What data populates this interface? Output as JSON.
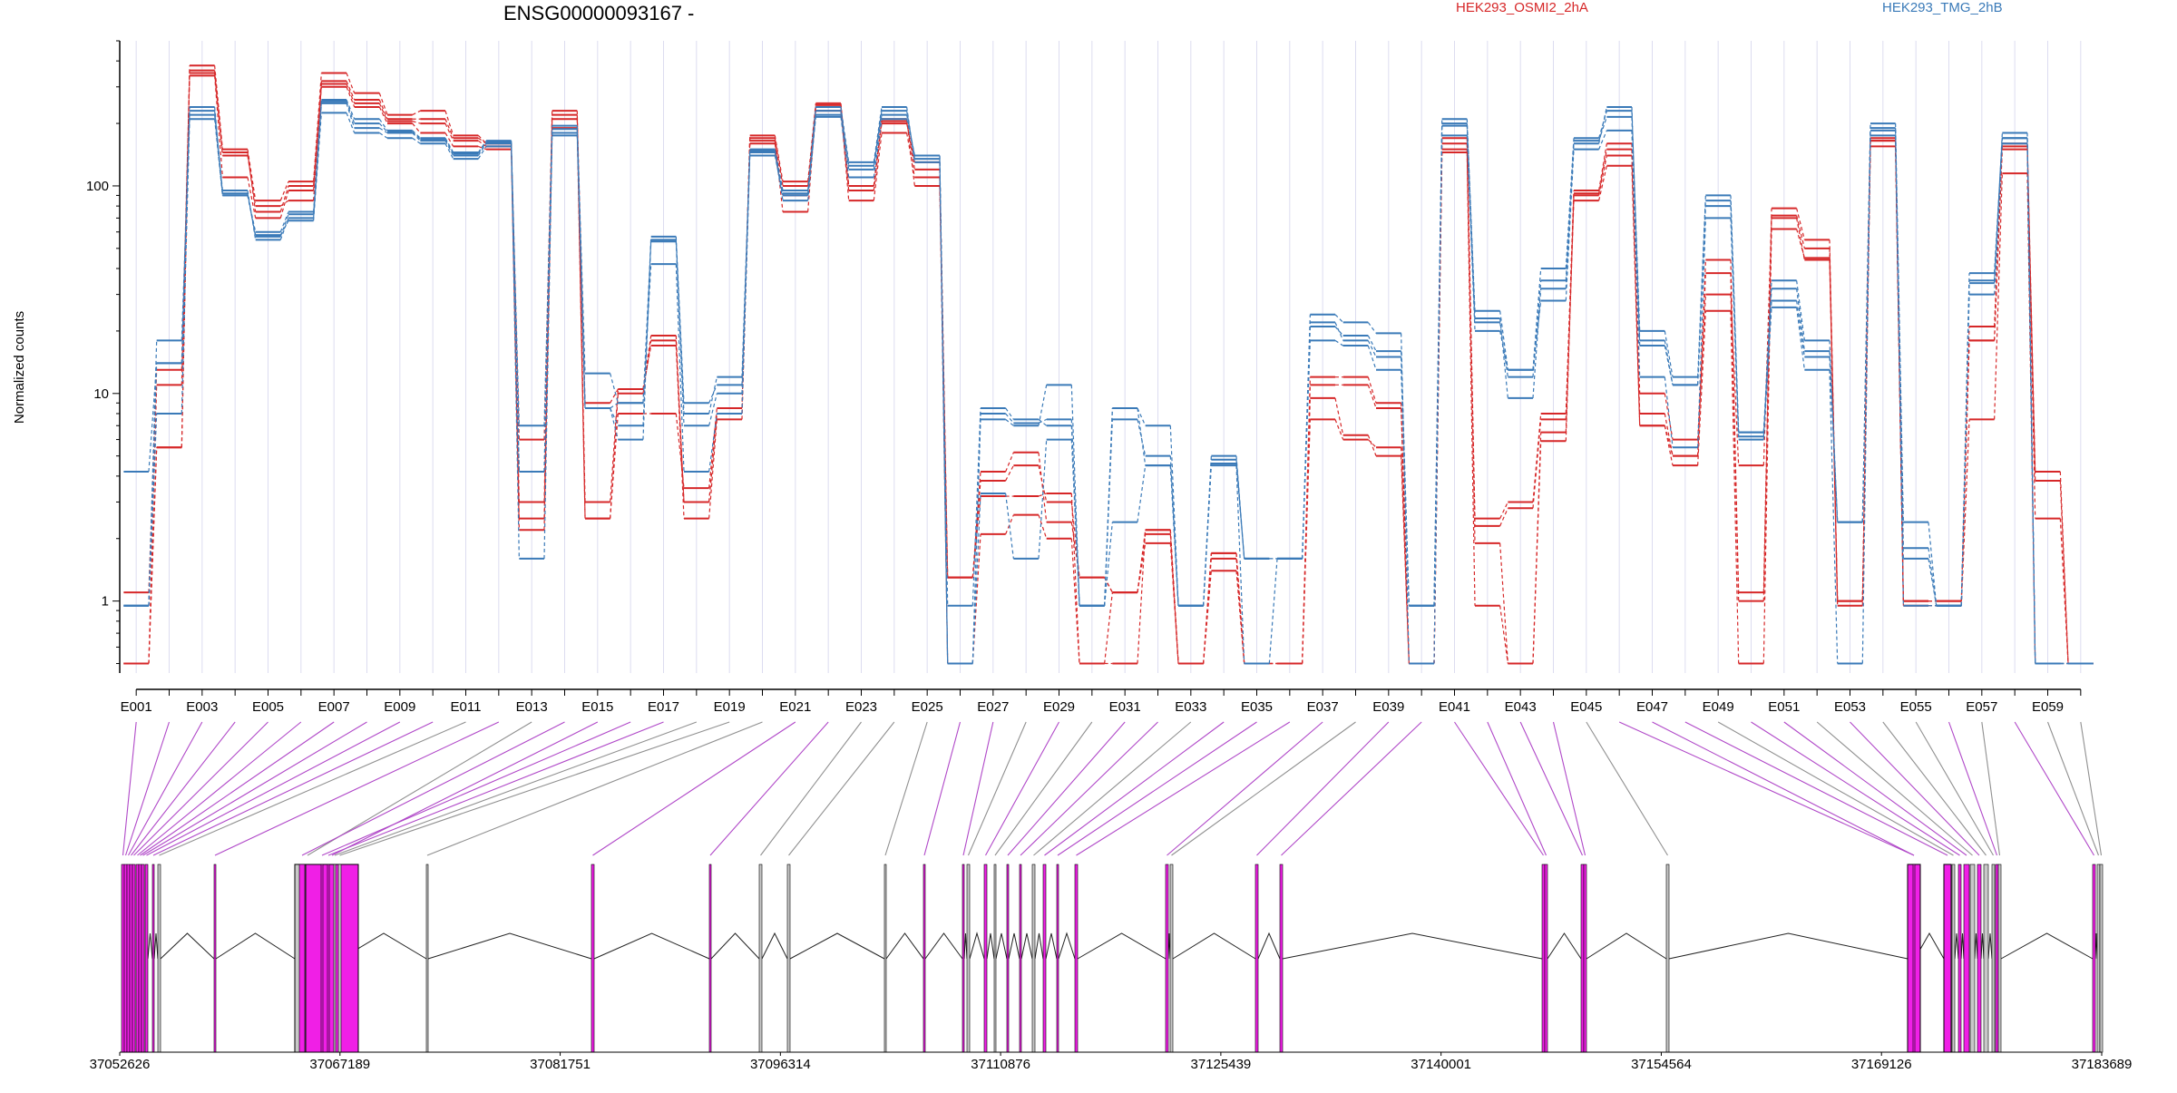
{
  "chart_data": {
    "type": "line",
    "title": "ENSG00000093167 -",
    "xlabel": "",
    "ylabel": "Normalized counts",
    "y_scale": "log",
    "ylim": [
      0.45,
      500
    ],
    "y_ticks": [
      1,
      10,
      100
    ],
    "y_tick_labels": [
      "1",
      "10",
      "100"
    ],
    "legend_position": "top-right",
    "legend": [
      {
        "label": "HEK293_OSMI2_2hA",
        "color": "#d62728"
      },
      {
        "label": "HEK293_TMG_2hB",
        "color": "#3a7ab8"
      }
    ],
    "colors": {
      "condition_a": "#d62728",
      "condition_b": "#3a7ab8",
      "exon_highlight": "#f01fe6",
      "exon_plain": "#c8c8c8",
      "link_highlight": "#b048c8",
      "link_plain": "#909090"
    },
    "categories": [
      "E001",
      "E002",
      "E003",
      "E004",
      "E005",
      "E006",
      "E007",
      "E008",
      "E009",
      "E010",
      "E011",
      "E012",
      "E013",
      "E014",
      "E015",
      "E016",
      "E017",
      "E018",
      "E019",
      "E020",
      "E021",
      "E022",
      "E023",
      "E024",
      "E025",
      "E026",
      "E027",
      "E028",
      "E029",
      "E030",
      "E031",
      "E032",
      "E033",
      "E034",
      "E035",
      "E036",
      "E037",
      "E038",
      "E039",
      "E040",
      "E041",
      "E042",
      "E043",
      "E044",
      "E045",
      "E046",
      "E047",
      "E048",
      "E049",
      "E050",
      "E051",
      "E052",
      "E053",
      "E054",
      "E055",
      "E056",
      "E057",
      "E058",
      "E059",
      "E060"
    ],
    "x_tick_labels": [
      "E001",
      "E003",
      "E005",
      "E007",
      "E009",
      "E011",
      "E013",
      "E015",
      "E017",
      "E019",
      "E021",
      "E023",
      "E025",
      "E027",
      "E029",
      "E031",
      "E033",
      "E035",
      "E037",
      "E039",
      "E041",
      "E043",
      "E045",
      "E047",
      "E049",
      "E051",
      "E053",
      "E055",
      "E057",
      "E059"
    ],
    "series_a_label": "HEK293_OSMI2_2hA",
    "series_b_label": "HEK293_TMG_2hB",
    "series": [
      {
        "group": "a",
        "values": [
          0.5,
          5.5,
          380,
          150,
          85,
          105,
          350,
          280,
          220,
          230,
          175,
          160,
          3,
          230,
          3,
          10.5,
          19,
          3,
          8,
          175,
          105,
          250,
          100,
          210,
          100,
          1.3,
          4.2,
          5.2,
          2.4,
          1.3,
          1.1,
          2.1,
          0.5,
          1.7,
          0.5,
          0.5,
          12,
          12,
          9,
          0.5,
          170,
          2.5,
          3,
          8,
          95,
          160,
          7,
          5,
          44,
          1.1,
          78,
          55,
          1,
          170,
          1,
          1,
          21,
          160,
          4.2,
          0.5
        ]
      },
      {
        "group": "a",
        "values": [
          0.5,
          11,
          350,
          140,
          80,
          85,
          310,
          250,
          205,
          200,
          165,
          155,
          2.5,
          210,
          2.5,
          10,
          18,
          2.5,
          7.5,
          160,
          90,
          230,
          95,
          200,
          130,
          1.3,
          3.2,
          3.2,
          3.3,
          0.5,
          1.1,
          1.9,
          0.5,
          1.7,
          0.5,
          0.5,
          9.5,
          6.3,
          5,
          0.5,
          150,
          1.9,
          0.5,
          5.9,
          90,
          140,
          10,
          6,
          30,
          4.5,
          70,
          44,
          1,
          165,
          1,
          1,
          18,
          150,
          2.5,
          0.5
        ]
      },
      {
        "group": "a",
        "values": [
          1.1,
          13,
          340,
          110,
          70,
          95,
          300,
          240,
          200,
          180,
          155,
          150,
          2.2,
          190,
          2.5,
          8,
          8,
          3.5,
          8.5,
          165,
          75,
          240,
          85,
          180,
          110,
          0.5,
          2.1,
          2.6,
          2,
          0.5,
          0.5,
          2.2,
          0.5,
          1.4,
          0.5,
          0.5,
          7.5,
          6,
          5.5,
          0.5,
          145,
          0.95,
          0.5,
          6.5,
          85,
          125,
          7,
          4.5,
          25,
          0.5,
          62,
          45,
          0.95,
          155,
          0.95,
          0.95,
          7.5,
          115,
          0.5,
          0.5
        ]
      },
      {
        "group": "a",
        "values": [
          0.5,
          5.5,
          360,
          145,
          75,
          100,
          320,
          260,
          210,
          210,
          170,
          160,
          6,
          220,
          9,
          10.5,
          17,
          3,
          8,
          170,
          100,
          245,
          100,
          205,
          120,
          1.3,
          3.8,
          4.5,
          3,
          1.3,
          1.1,
          2.2,
          0.5,
          1.6,
          0.5,
          0.5,
          11,
          11,
          8.5,
          0.5,
          160,
          2.3,
          2.8,
          7.5,
          92,
          150,
          8,
          5,
          38,
          1,
          72,
          50,
          1,
          165,
          1,
          1,
          18,
          155,
          3.8,
          0.5
        ]
      },
      {
        "group": "b",
        "values": [
          0.95,
          18,
          220,
          90,
          60,
          75,
          260,
          210,
          185,
          170,
          145,
          165,
          7,
          195,
          12.5,
          9,
          55,
          8,
          12,
          150,
          95,
          240,
          130,
          240,
          130,
          0.95,
          8.5,
          7.5,
          7,
          0.95,
          8.5,
          7,
          0.95,
          5,
          1.6,
          1.6,
          22,
          18,
          15,
          0.95,
          200,
          25,
          13,
          40,
          170,
          230,
          20,
          12,
          90,
          6.5,
          35,
          18,
          2.4,
          200,
          2.4,
          0.95,
          38,
          170,
          0.5,
          0.5
        ]
      },
      {
        "group": "b",
        "values": [
          4.2,
          14,
          230,
          95,
          55,
          70,
          250,
          190,
          180,
          165,
          140,
          160,
          4.2,
          180,
          8.5,
          6,
          57,
          9,
          11,
          145,
          85,
          220,
          120,
          220,
          140,
          0.5,
          7.5,
          7,
          11,
          0.95,
          8.5,
          4.5,
          0.95,
          4.8,
          1.6,
          1.6,
          24,
          22,
          19.5,
          0.5,
          210,
          23,
          9.5,
          32,
          160,
          240,
          17,
          11,
          85,
          6.5,
          28,
          15,
          2.4,
          175,
          1.6,
          0.95,
          34,
          180,
          0.5,
          0.5
        ]
      },
      {
        "group": "b",
        "values": [
          0.95,
          8,
          210,
          90,
          58,
          68,
          225,
          180,
          170,
          160,
          135,
          155,
          1.6,
          175,
          8.5,
          9,
          42,
          4.2,
          8,
          140,
          90,
          215,
          110,
          210,
          140,
          0.5,
          3.3,
          1.6,
          6,
          0.95,
          2.4,
          4.5,
          0.95,
          4.5,
          0.5,
          1.6,
          18,
          17,
          13,
          0.95,
          175,
          20,
          13,
          28,
          150,
          185,
          12,
          5.5,
          70,
          6,
          26,
          13,
          0.5,
          185,
          0.95,
          0.95,
          30,
          160,
          0.5,
          0.5
        ]
      },
      {
        "group": "b",
        "values": [
          0.95,
          14,
          240,
          92,
          57,
          73,
          255,
          200,
          182,
          168,
          143,
          162,
          4.2,
          188,
          8.5,
          7,
          54,
          7,
          10,
          148,
          92,
          230,
          125,
          230,
          135,
          0.5,
          8,
          7.2,
          7.5,
          0.95,
          7.5,
          5,
          0.95,
          4.6,
          1.6,
          1.6,
          21,
          19,
          16,
          0.95,
          195,
          22,
          12,
          35,
          165,
          215,
          18,
          11,
          80,
          6.2,
          32,
          16,
          2.4,
          190,
          1.8,
          0.95,
          35,
          170,
          0.5,
          0.5
        ]
      }
    ],
    "genome_axis_ticks": [
      "37052626",
      "37067189",
      "37081751",
      "37096314",
      "37110876",
      "37125439",
      "37140001",
      "37154564",
      "37169126",
      "37183689"
    ],
    "genome_range": [
      37052626,
      37183689
    ]
  }
}
